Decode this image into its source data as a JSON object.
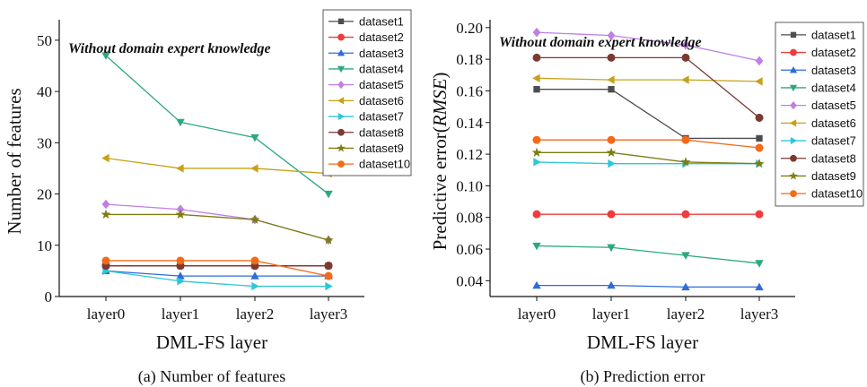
{
  "chart_data": [
    {
      "type": "line",
      "caption": "(a) Number of features",
      "annotation": "Without domain expert knowledge",
      "xlabel": "DML-FS layer",
      "ylabel": "Number of features",
      "categories": [
        "layer0",
        "layer1",
        "layer2",
        "layer3"
      ],
      "ylim": [
        0,
        54
      ],
      "yticks": [
        0,
        10,
        20,
        30,
        40,
        50
      ],
      "grid": false,
      "legend_position": "top-right",
      "series": [
        {
          "name": "dataset1",
          "color": "#4d4d4d",
          "marker": "square",
          "values": [
            6,
            6,
            6,
            6
          ]
        },
        {
          "name": "dataset2",
          "color": "#f03c3c",
          "marker": "circle",
          "values": [
            6,
            6,
            6,
            6
          ]
        },
        {
          "name": "dataset3",
          "color": "#2d6cd9",
          "marker": "triangle-up",
          "values": [
            5,
            4,
            4,
            4
          ]
        },
        {
          "name": "dataset4",
          "color": "#2ca87f",
          "marker": "triangle-down",
          "values": [
            47,
            34,
            31,
            20
          ]
        },
        {
          "name": "dataset5",
          "color": "#c07ee6",
          "marker": "diamond",
          "values": [
            18,
            17,
            15,
            11
          ]
        },
        {
          "name": "dataset6",
          "color": "#c9a017",
          "marker": "triangle-left",
          "values": [
            27,
            25,
            25,
            24
          ]
        },
        {
          "name": "dataset7",
          "color": "#2cc7d9",
          "marker": "triangle-right",
          "values": [
            5,
            3,
            2,
            2
          ]
        },
        {
          "name": "dataset8",
          "color": "#7a3a32",
          "marker": "circle",
          "values": [
            6,
            6,
            6,
            6
          ]
        },
        {
          "name": "dataset9",
          "color": "#7d7d12",
          "marker": "star",
          "values": [
            16,
            16,
            15,
            11
          ]
        },
        {
          "name": "dataset10",
          "color": "#f56a16",
          "marker": "circle",
          "values": [
            7,
            7,
            7,
            4
          ]
        }
      ]
    },
    {
      "type": "line",
      "caption": "(b) Prediction error",
      "annotation": "Without domain expert knowledge",
      "xlabel": "DML-FS layer",
      "ylabel_prefix": "Predictive error(",
      "ylabel_italic": "RMSE",
      "ylabel_suffix": ")",
      "categories": [
        "layer0",
        "layer1",
        "layer2",
        "layer3"
      ],
      "ylim": [
        0.03,
        0.205
      ],
      "yticks": [
        "0.04",
        "0.06",
        "0.08",
        "0.10",
        "0.12",
        "0.14",
        "0.16",
        "0.18",
        "0.20"
      ],
      "grid": false,
      "legend_position": "top-right",
      "series": [
        {
          "name": "dataset1",
          "color": "#4d4d4d",
          "marker": "square",
          "values": [
            0.161,
            0.161,
            0.13,
            0.13
          ]
        },
        {
          "name": "dataset2",
          "color": "#f03c3c",
          "marker": "circle",
          "values": [
            0.082,
            0.082,
            0.082,
            0.082
          ]
        },
        {
          "name": "dataset3",
          "color": "#2d6cd9",
          "marker": "triangle-up",
          "values": [
            0.037,
            0.037,
            0.036,
            0.036
          ]
        },
        {
          "name": "dataset4",
          "color": "#2ca87f",
          "marker": "triangle-down",
          "values": [
            0.062,
            0.061,
            0.056,
            0.051
          ]
        },
        {
          "name": "dataset5",
          "color": "#c07ee6",
          "marker": "diamond",
          "values": [
            0.197,
            0.195,
            0.189,
            0.179
          ]
        },
        {
          "name": "dataset6",
          "color": "#c9a017",
          "marker": "triangle-left",
          "values": [
            0.168,
            0.167,
            0.167,
            0.166
          ]
        },
        {
          "name": "dataset7",
          "color": "#2cc7d9",
          "marker": "triangle-right",
          "values": [
            0.115,
            0.114,
            0.114,
            0.114
          ]
        },
        {
          "name": "dataset8",
          "color": "#7a3a32",
          "marker": "circle",
          "values": [
            0.181,
            0.181,
            0.181,
            0.143
          ]
        },
        {
          "name": "dataset9",
          "color": "#7d7d12",
          "marker": "star",
          "values": [
            0.121,
            0.121,
            0.115,
            0.114
          ]
        },
        {
          "name": "dataset10",
          "color": "#f56a16",
          "marker": "circle",
          "values": [
            0.129,
            0.129,
            0.129,
            0.124
          ]
        }
      ]
    }
  ]
}
